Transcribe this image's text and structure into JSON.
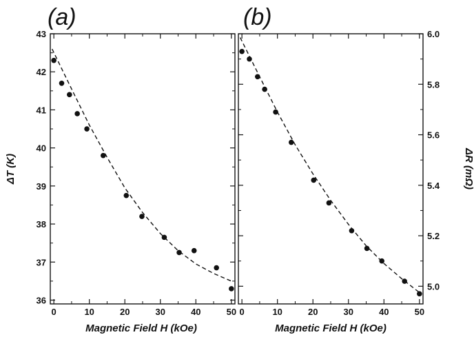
{
  "chart_data": [
    {
      "type": "scatter",
      "panel_label": "(a)",
      "xlabel": "Magnetic Field H (kOe)",
      "ylabel": "ΔT (K)",
      "xlim": [
        -1,
        51
      ],
      "ylim": [
        35.9,
        43
      ],
      "xticks": [
        0,
        10,
        20,
        30,
        40,
        50
      ],
      "yticks": [
        36,
        37,
        38,
        39,
        40,
        41,
        42,
        43
      ],
      "y_axis_side": "left",
      "grid": false,
      "series": [
        {
          "style": "points",
          "x": [
            0,
            2.2,
            4.4,
            6.6,
            9.3,
            13.9,
            20.4,
            24.8,
            31.1,
            35.3,
            39.5,
            45.8,
            50
          ],
          "y": [
            42.3,
            41.7,
            41.4,
            40.9,
            40.5,
            39.8,
            38.75,
            38.2,
            37.65,
            37.25,
            37.3,
            36.85,
            36.3
          ]
        },
        {
          "style": "dashed-fit",
          "x": [
            -0.5,
            5,
            10,
            15,
            20,
            25,
            30,
            35,
            40,
            45,
            50
          ],
          "y": [
            42.6,
            41.55,
            40.6,
            39.75,
            38.95,
            38.3,
            37.75,
            37.3,
            36.95,
            36.7,
            36.5
          ]
        }
      ]
    },
    {
      "type": "scatter",
      "panel_label": "(b)",
      "xlabel": "Magnetic Field H (kOe)",
      "ylabel": "ΔR (mΩ)",
      "xlim": [
        -1,
        51
      ],
      "ylim": [
        4.93,
        6.0
      ],
      "xticks": [
        0,
        10,
        20,
        30,
        40,
        50
      ],
      "yticks": [
        5.0,
        5.2,
        5.4,
        5.6,
        5.8,
        6.0
      ],
      "y_axis_side": "right",
      "grid": false,
      "series": [
        {
          "style": "points",
          "x": [
            0,
            2.1,
            4.4,
            6.4,
            9.5,
            13.9,
            20.2,
            24.5,
            30.9,
            35.2,
            39.4,
            45.8,
            50
          ],
          "y": [
            5.93,
            5.9,
            5.83,
            5.78,
            5.69,
            5.57,
            5.42,
            5.33,
            5.22,
            5.15,
            5.1,
            5.02,
            4.97
          ]
        },
        {
          "style": "dashed-fit",
          "x": [
            -0.5,
            5,
            10,
            15,
            20,
            25,
            30,
            35,
            40,
            45,
            50
          ],
          "y": [
            5.985,
            5.83,
            5.69,
            5.56,
            5.445,
            5.34,
            5.245,
            5.16,
            5.09,
            5.03,
            4.975
          ]
        }
      ]
    }
  ]
}
